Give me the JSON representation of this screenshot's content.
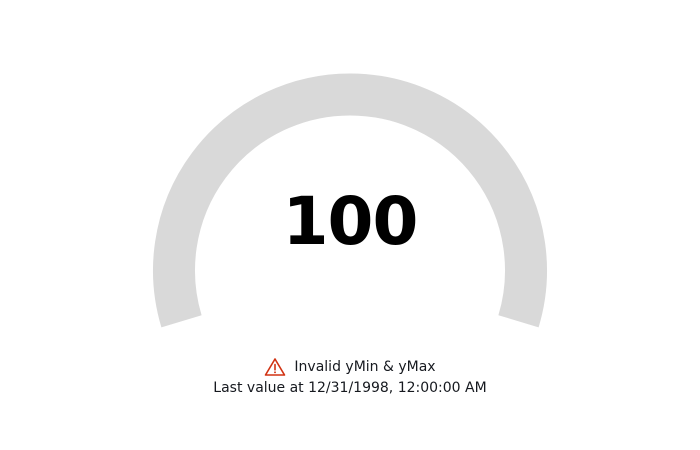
{
  "gauge": {
    "value": "100",
    "track_color": "#d9d9d9"
  },
  "status": {
    "icon": "warning-triangle-icon",
    "icon_color": "#d13212",
    "warning_text": "Invalid yMin & yMax",
    "last_value_text": "Last value at 12/31/1998, 12:00:00 AM"
  }
}
